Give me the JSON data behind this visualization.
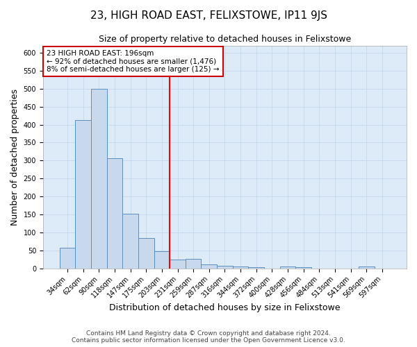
{
  "title": "23, HIGH ROAD EAST, FELIXSTOWE, IP11 9JS",
  "subtitle": "Size of property relative to detached houses in Felixstowe",
  "xlabel": "Distribution of detached houses by size in Felixstowe",
  "ylabel": "Number of detached properties",
  "categories": [
    "34sqm",
    "62sqm",
    "90sqm",
    "118sqm",
    "147sqm",
    "175sqm",
    "203sqm",
    "231sqm",
    "259sqm",
    "287sqm",
    "316sqm",
    "344sqm",
    "372sqm",
    "400sqm",
    "428sqm",
    "456sqm",
    "484sqm",
    "513sqm",
    "541sqm",
    "569sqm",
    "597sqm"
  ],
  "values": [
    58,
    413,
    500,
    307,
    152,
    85,
    47,
    25,
    27,
    11,
    7,
    5,
    3,
    0,
    5,
    3,
    0,
    0,
    0,
    5,
    0
  ],
  "bar_color": "#c8d9ed",
  "bar_edge_color": "#5a8fc0",
  "red_line_index": 6,
  "annotation_line1": "23 HIGH ROAD EAST: 196sqm",
  "annotation_line2": "← 92% of detached houses are smaller (1,476)",
  "annotation_line3": "8% of semi-detached houses are larger (125) →",
  "annotation_box_color": "#ffffff",
  "annotation_box_edge_color": "#cc0000",
  "footer_line1": "Contains HM Land Registry data © Crown copyright and database right 2024.",
  "footer_line2": "Contains public sector information licensed under the Open Government Licence v3.0.",
  "ylim": [
    0,
    620
  ],
  "yticks": [
    0,
    50,
    100,
    150,
    200,
    250,
    300,
    350,
    400,
    450,
    500,
    550,
    600
  ],
  "title_fontsize": 11,
  "subtitle_fontsize": 9,
  "axis_label_fontsize": 9,
  "tick_fontsize": 7,
  "annotation_fontsize": 7.5,
  "footer_fontsize": 6.5
}
